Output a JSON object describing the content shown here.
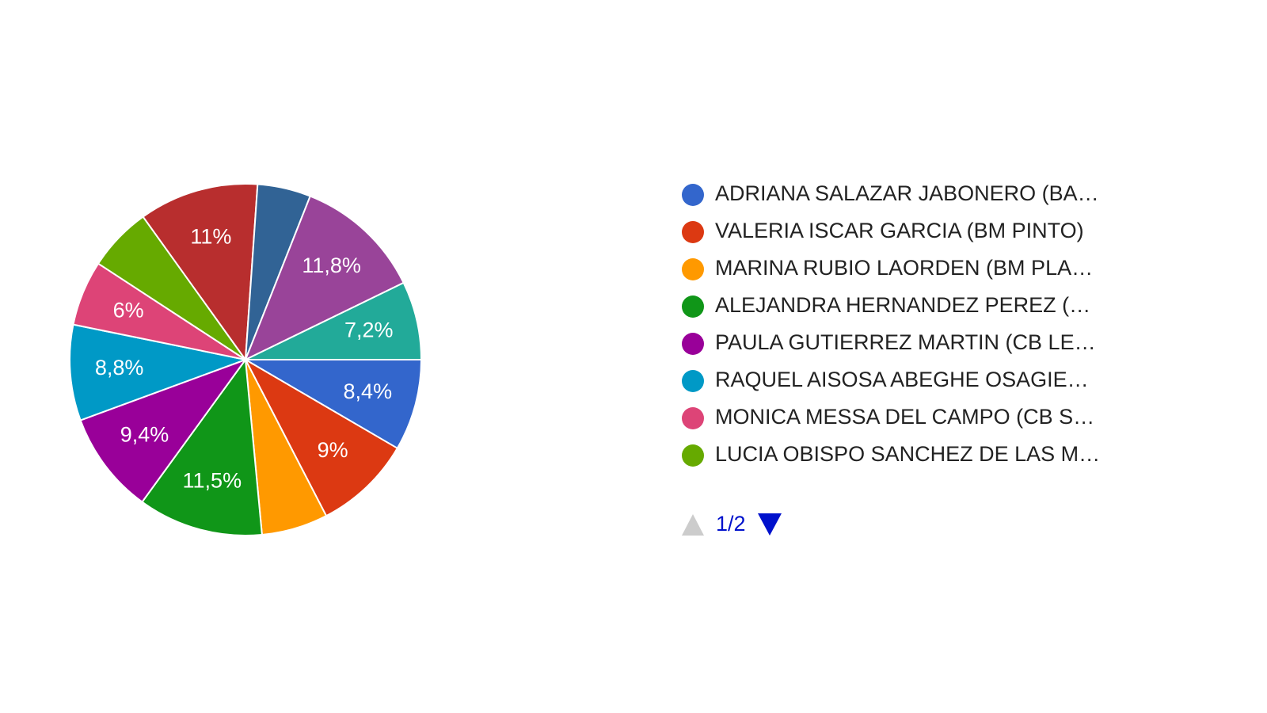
{
  "chart_data": {
    "type": "pie",
    "categories": [
      "ADRIANA SALAZAR JABONERO (BA…",
      "VALERIA ISCAR GARCIA (BM PINTO)",
      "MARINA RUBIO LAORDEN (BM PLA…",
      "ALEJANDRA HERNANDEZ PEREZ (…",
      "PAULA GUTIERREZ MARTIN (CB LE…",
      "RAQUEL AISOSA ABEGHE OSAGIE…",
      "MONICA MESSA DEL CAMPO (CB S…",
      "LUCIA OBISPO SANCHEZ DE LAS M…",
      null,
      null,
      null,
      null
    ],
    "values": [
      8.4,
      9,
      6.1,
      11.5,
      9.4,
      8.8,
      6,
      5.9,
      11,
      4.9,
      11.8,
      7.2
    ],
    "value_labels": [
      "8,4%",
      "9%",
      null,
      "11,5%",
      "9,4%",
      "8,8%",
      "6%",
      null,
      "11%",
      null,
      "11,8%",
      "7,2%"
    ],
    "colors": [
      "#3366cc",
      "#dc3912",
      "#ff9900",
      "#109618",
      "#990099",
      "#0099c6",
      "#dd4477",
      "#66aa00",
      "#b82e2e",
      "#316395",
      "#994499",
      "#22aa99"
    ],
    "legend_page": "1/2"
  }
}
